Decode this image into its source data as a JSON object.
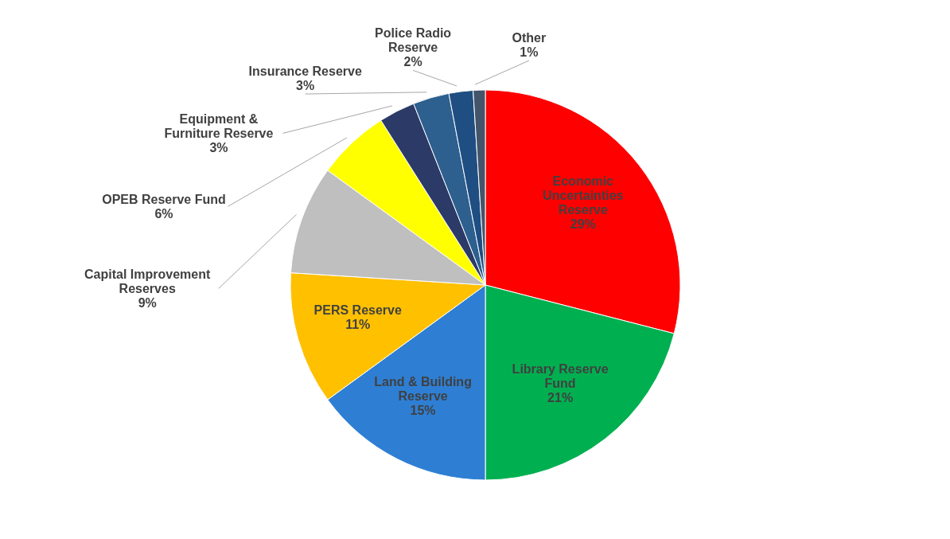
{
  "chart_data": {
    "type": "pie",
    "categories": [
      "Economic Uncertainties Reserve",
      "Library Reserve Fund",
      "Land & Building Reserve",
      "PERS Reserve",
      "Capital Improvement Reserves",
      "OPEB Reserve Fund",
      "Equipment & Furniture Reserve",
      "Insurance Reserve",
      "Police Radio Reserve",
      "Other"
    ],
    "values": [
      29,
      21,
      15,
      11,
      9,
      6,
      3,
      3,
      2,
      1
    ],
    "value_labels": [
      "29%",
      "21%",
      "15%",
      "11%",
      "9%",
      "6%",
      "3%",
      "3%",
      "2%",
      "1%"
    ],
    "colors": [
      "#ff0000",
      "#00b050",
      "#2e7fd4",
      "#ffc000",
      "#bfbfbf",
      "#ffff00",
      "#2b3a67",
      "#2d5f8f",
      "#1f4e82",
      "#44546a"
    ]
  }
}
